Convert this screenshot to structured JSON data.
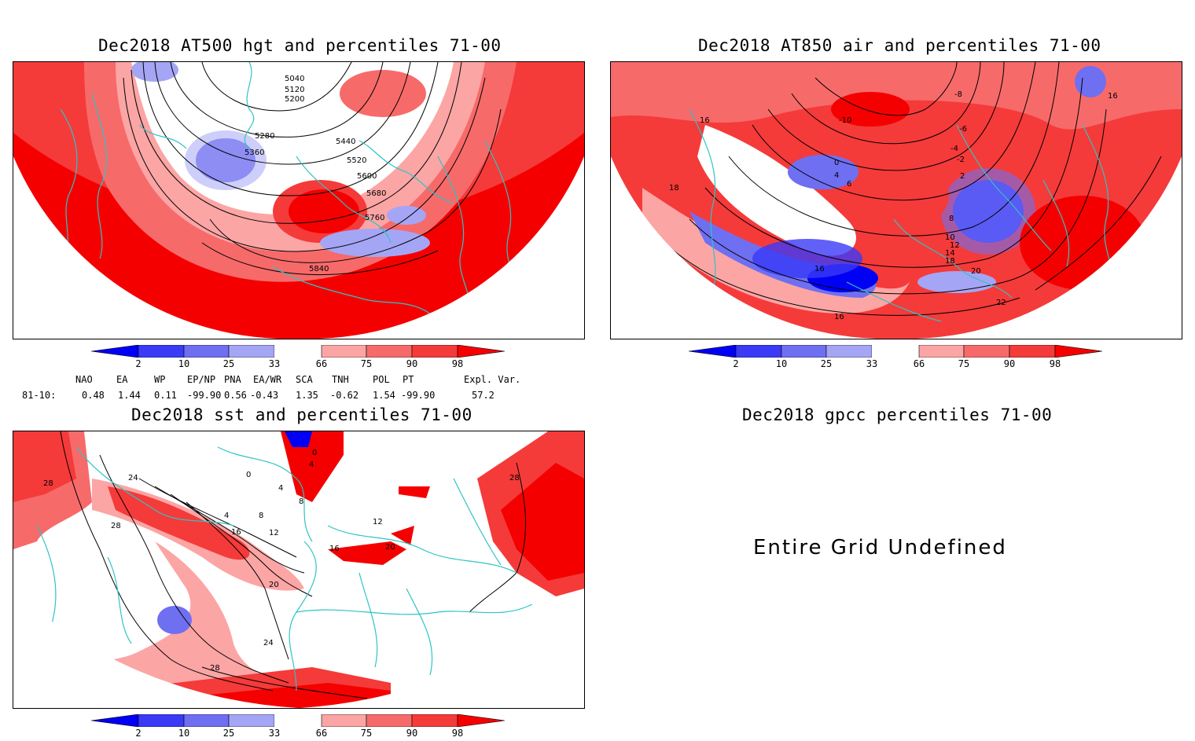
{
  "panels": {
    "hgt": {
      "title": "Dec2018 AT500 hgt and percentiles 71-00",
      "contour_labels": [
        "5040",
        "5120",
        "5200",
        "5280",
        "5360",
        "5440",
        "5520",
        "5600",
        "5680",
        "5760",
        "5840"
      ]
    },
    "air": {
      "title": "Dec2018 AT850 air and percentiles 71-00",
      "contour_labels": [
        "-8",
        "-10",
        "-6",
        "-4",
        "-2",
        "0",
        "2",
        "4",
        "6",
        "8",
        "10",
        "12",
        "14",
        "16",
        "18",
        "20",
        "22",
        "16",
        "18",
        "16",
        "16"
      ]
    },
    "sst": {
      "title": "Dec2018 sst and percentiles 71-00",
      "contour_labels": [
        "28",
        "28",
        "24",
        "0",
        "4",
        "4",
        "8",
        "8",
        "12",
        "16",
        "12",
        "16",
        "20",
        "20",
        "24",
        "28",
        "28",
        "4",
        "0"
      ]
    },
    "gpcc": {
      "title": "Dec2018 gpcc percentiles 71-00",
      "message": "Entire Grid Undefined"
    }
  },
  "colorbar": {
    "ticks": [
      "2",
      "10",
      "25",
      "33",
      "66",
      "75",
      "90",
      "98"
    ],
    "colors": [
      "#0000f5",
      "#3a3af7",
      "#6f6ff2",
      "#a5a5f5",
      "#ffffff",
      "#fca5a5",
      "#f76a6a",
      "#f53a3a",
      "#f50000"
    ]
  },
  "indices": {
    "headers": [
      "NAO",
      "EA",
      "WP",
      "EP/NP",
      "PNA",
      "EA/WR",
      "SCA",
      "TNH",
      "POL",
      "PT",
      "Expl. Var."
    ],
    "row_label": "81-10:",
    "values": [
      "0.48",
      "1.44",
      "0.11",
      "-99.90",
      "0.56",
      "-0.43",
      "1.35",
      "-0.62",
      "1.54",
      "-99.90",
      "57.2"
    ]
  },
  "map_colors": {
    "coast": "#2ec4c4",
    "contour": "#000000",
    "grid": "#9a9a9a"
  }
}
